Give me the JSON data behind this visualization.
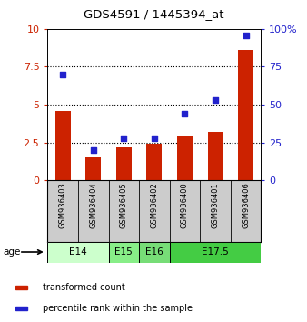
{
  "title": "GDS4591 / 1445394_at",
  "samples": [
    "GSM936403",
    "GSM936404",
    "GSM936405",
    "GSM936402",
    "GSM936400",
    "GSM936401",
    "GSM936406"
  ],
  "bar_values": [
    4.6,
    1.5,
    2.2,
    2.4,
    2.9,
    3.2,
    8.6
  ],
  "percentile_values": [
    70,
    20,
    28,
    28,
    44,
    53,
    96
  ],
  "bar_color": "#cc2200",
  "dot_color": "#2222cc",
  "age_groups": [
    {
      "label": "E14",
      "start": 0,
      "end": 2,
      "color": "#ccffcc"
    },
    {
      "label": "E15",
      "start": 2,
      "end": 3,
      "color": "#88ee88"
    },
    {
      "label": "E16",
      "start": 3,
      "end": 4,
      "color": "#77dd77"
    },
    {
      "label": "E17.5",
      "start": 4,
      "end": 7,
      "color": "#44cc44"
    }
  ],
  "ylim_left": [
    0,
    10
  ],
  "ylim_right": [
    0,
    100
  ],
  "yticks_left": [
    0,
    2.5,
    5,
    7.5,
    10
  ],
  "yticks_right": [
    0,
    25,
    50,
    75,
    100
  ],
  "ytick_labels_right": [
    "0",
    "25",
    "50",
    "75",
    "100%"
  ],
  "background_color": "#ffffff",
  "plot_bg_color": "#ffffff",
  "sample_box_color": "#cccccc",
  "age_label": "age",
  "legend_items": [
    {
      "color": "#cc2200",
      "label": "transformed count"
    },
    {
      "color": "#2222cc",
      "label": "percentile rank within the sample"
    }
  ]
}
